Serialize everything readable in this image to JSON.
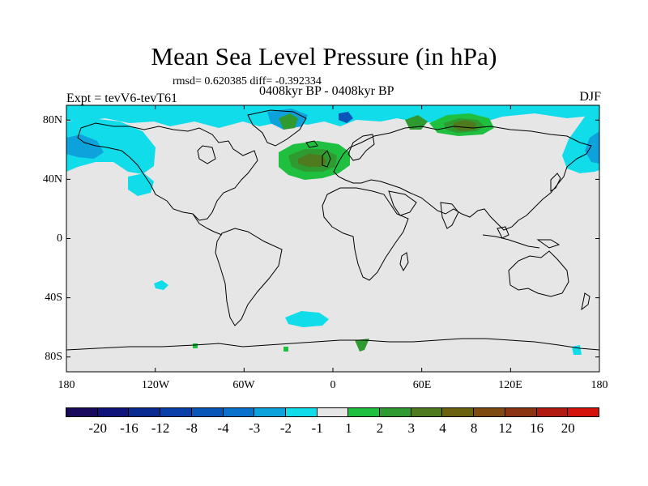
{
  "title": "Mean Sea Level Pressure (in hPa)",
  "stats": "rmsd= 0.620385 diff= -0.392334",
  "period": "0408kyr BP - 0408kyr BP",
  "experiment": "Expt = tevV6-tevT61",
  "season": "DJF",
  "map": {
    "projection": "cylindrical-equidistant",
    "lon_range": [
      -180,
      180
    ],
    "lat_range": [
      -90,
      90
    ],
    "ocean_color": "#e6e6e6",
    "coastline_color": "#000000",
    "y_ticks": [
      "80N",
      "40N",
      "0",
      "40S",
      "80S"
    ],
    "x_ticks": [
      "180",
      "120W",
      "60W",
      "0",
      "60E",
      "120E",
      "180"
    ],
    "anomalies": [
      {
        "region": "North Pacific",
        "sign": "negative",
        "level": "-2 to -1"
      },
      {
        "region": "Arctic coast of Alaska and Canada",
        "sign": "negative",
        "level": "-2 to -1"
      },
      {
        "region": "Greenland",
        "sign": "negative",
        "level": "-3 to -2"
      },
      {
        "region": "North Atlantic",
        "sign": "positive",
        "level": "2 to 4"
      },
      {
        "region": "Kara Sea / Siberia",
        "sign": "positive",
        "level": "2 to 4"
      },
      {
        "region": "Southern Ocean",
        "sign": "negative",
        "level": "-2 to -1"
      },
      {
        "region": "East Antarctica",
        "sign": "positive",
        "level": "2 to 3"
      }
    ]
  },
  "colorbar": {
    "labels": [
      "-20",
      "-16",
      "-12",
      "-8",
      "-4",
      "-3",
      "-2",
      "-1",
      "1",
      "2",
      "3",
      "4",
      "8",
      "12",
      "16",
      "20"
    ],
    "colors": [
      "#1a0a5c",
      "#10147a",
      "#0b2a91",
      "#0a3ea8",
      "#0756b8",
      "#0a72cc",
      "#0ea2dc",
      "#10dcea",
      "#e6e6e6",
      "#1fbf3f",
      "#2f9a30",
      "#4f7a1e",
      "#6b6210",
      "#7e4a10",
      "#8a3412",
      "#b01a10",
      "#d4140c"
    ]
  }
}
